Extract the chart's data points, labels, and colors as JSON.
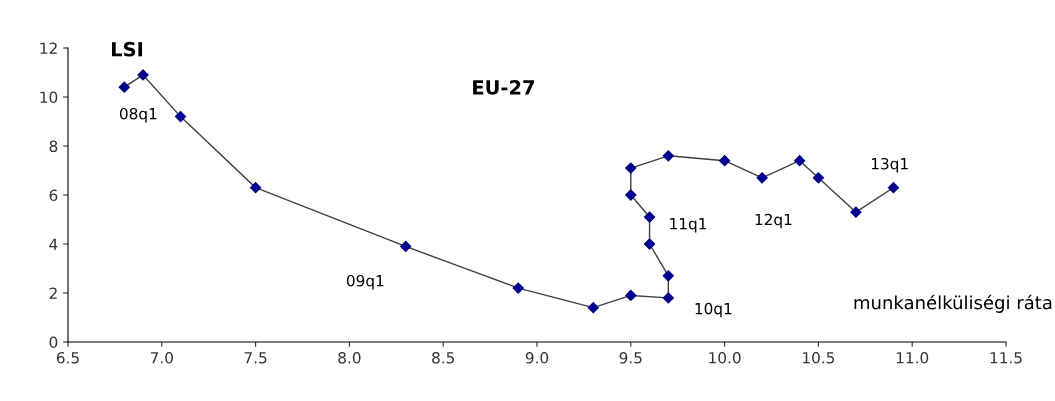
{
  "chart_data": {
    "type": "line",
    "title": "EU-27",
    "xlabel": "munkanélküliségi ráta",
    "ylabel": "LSI",
    "series": [
      {
        "color": "#00008b",
        "x": [
          6.8,
          6.9,
          7.1,
          7.5,
          8.3,
          8.9,
          9.3,
          9.5,
          9.7,
          9.7,
          9.6,
          9.6,
          9.5,
          9.5,
          9.7,
          10.0,
          10.2,
          10.4,
          10.5,
          10.7,
          10.9
        ],
        "values": [
          10.4,
          10.9,
          9.2,
          6.3,
          3.9,
          2.2,
          1.4,
          1.9,
          1.8,
          2.7,
          4.0,
          5.1,
          6.0,
          7.1,
          7.6,
          7.4,
          6.7,
          7.4,
          6.7,
          5.3,
          6.3
        ]
      }
    ],
    "marker": "diamond",
    "line_style": "solid",
    "grid": false,
    "legend": false,
    "xlim": [
      6.5,
      11.5
    ],
    "xticks": [
      6.5,
      {
        "value": 7,
        "label": "7.0"
      },
      7.5,
      {
        "value": 8,
        "label": "8.0"
      },
      8.5,
      {
        "value": 9,
        "label": "9.0"
      },
      9.5,
      {
        "value": 10,
        "label": "10.0"
      },
      10.5,
      {
        "value": 11,
        "label": "11.0"
      },
      11.5
    ],
    "ylim": [
      0,
      12
    ],
    "yticks": [
      0,
      2,
      4,
      6,
      8,
      10,
      12
    ],
    "annotations": [
      "08q1",
      "09q1",
      "10q1",
      "11q1",
      "12q1",
      "13q1"
    ]
  }
}
